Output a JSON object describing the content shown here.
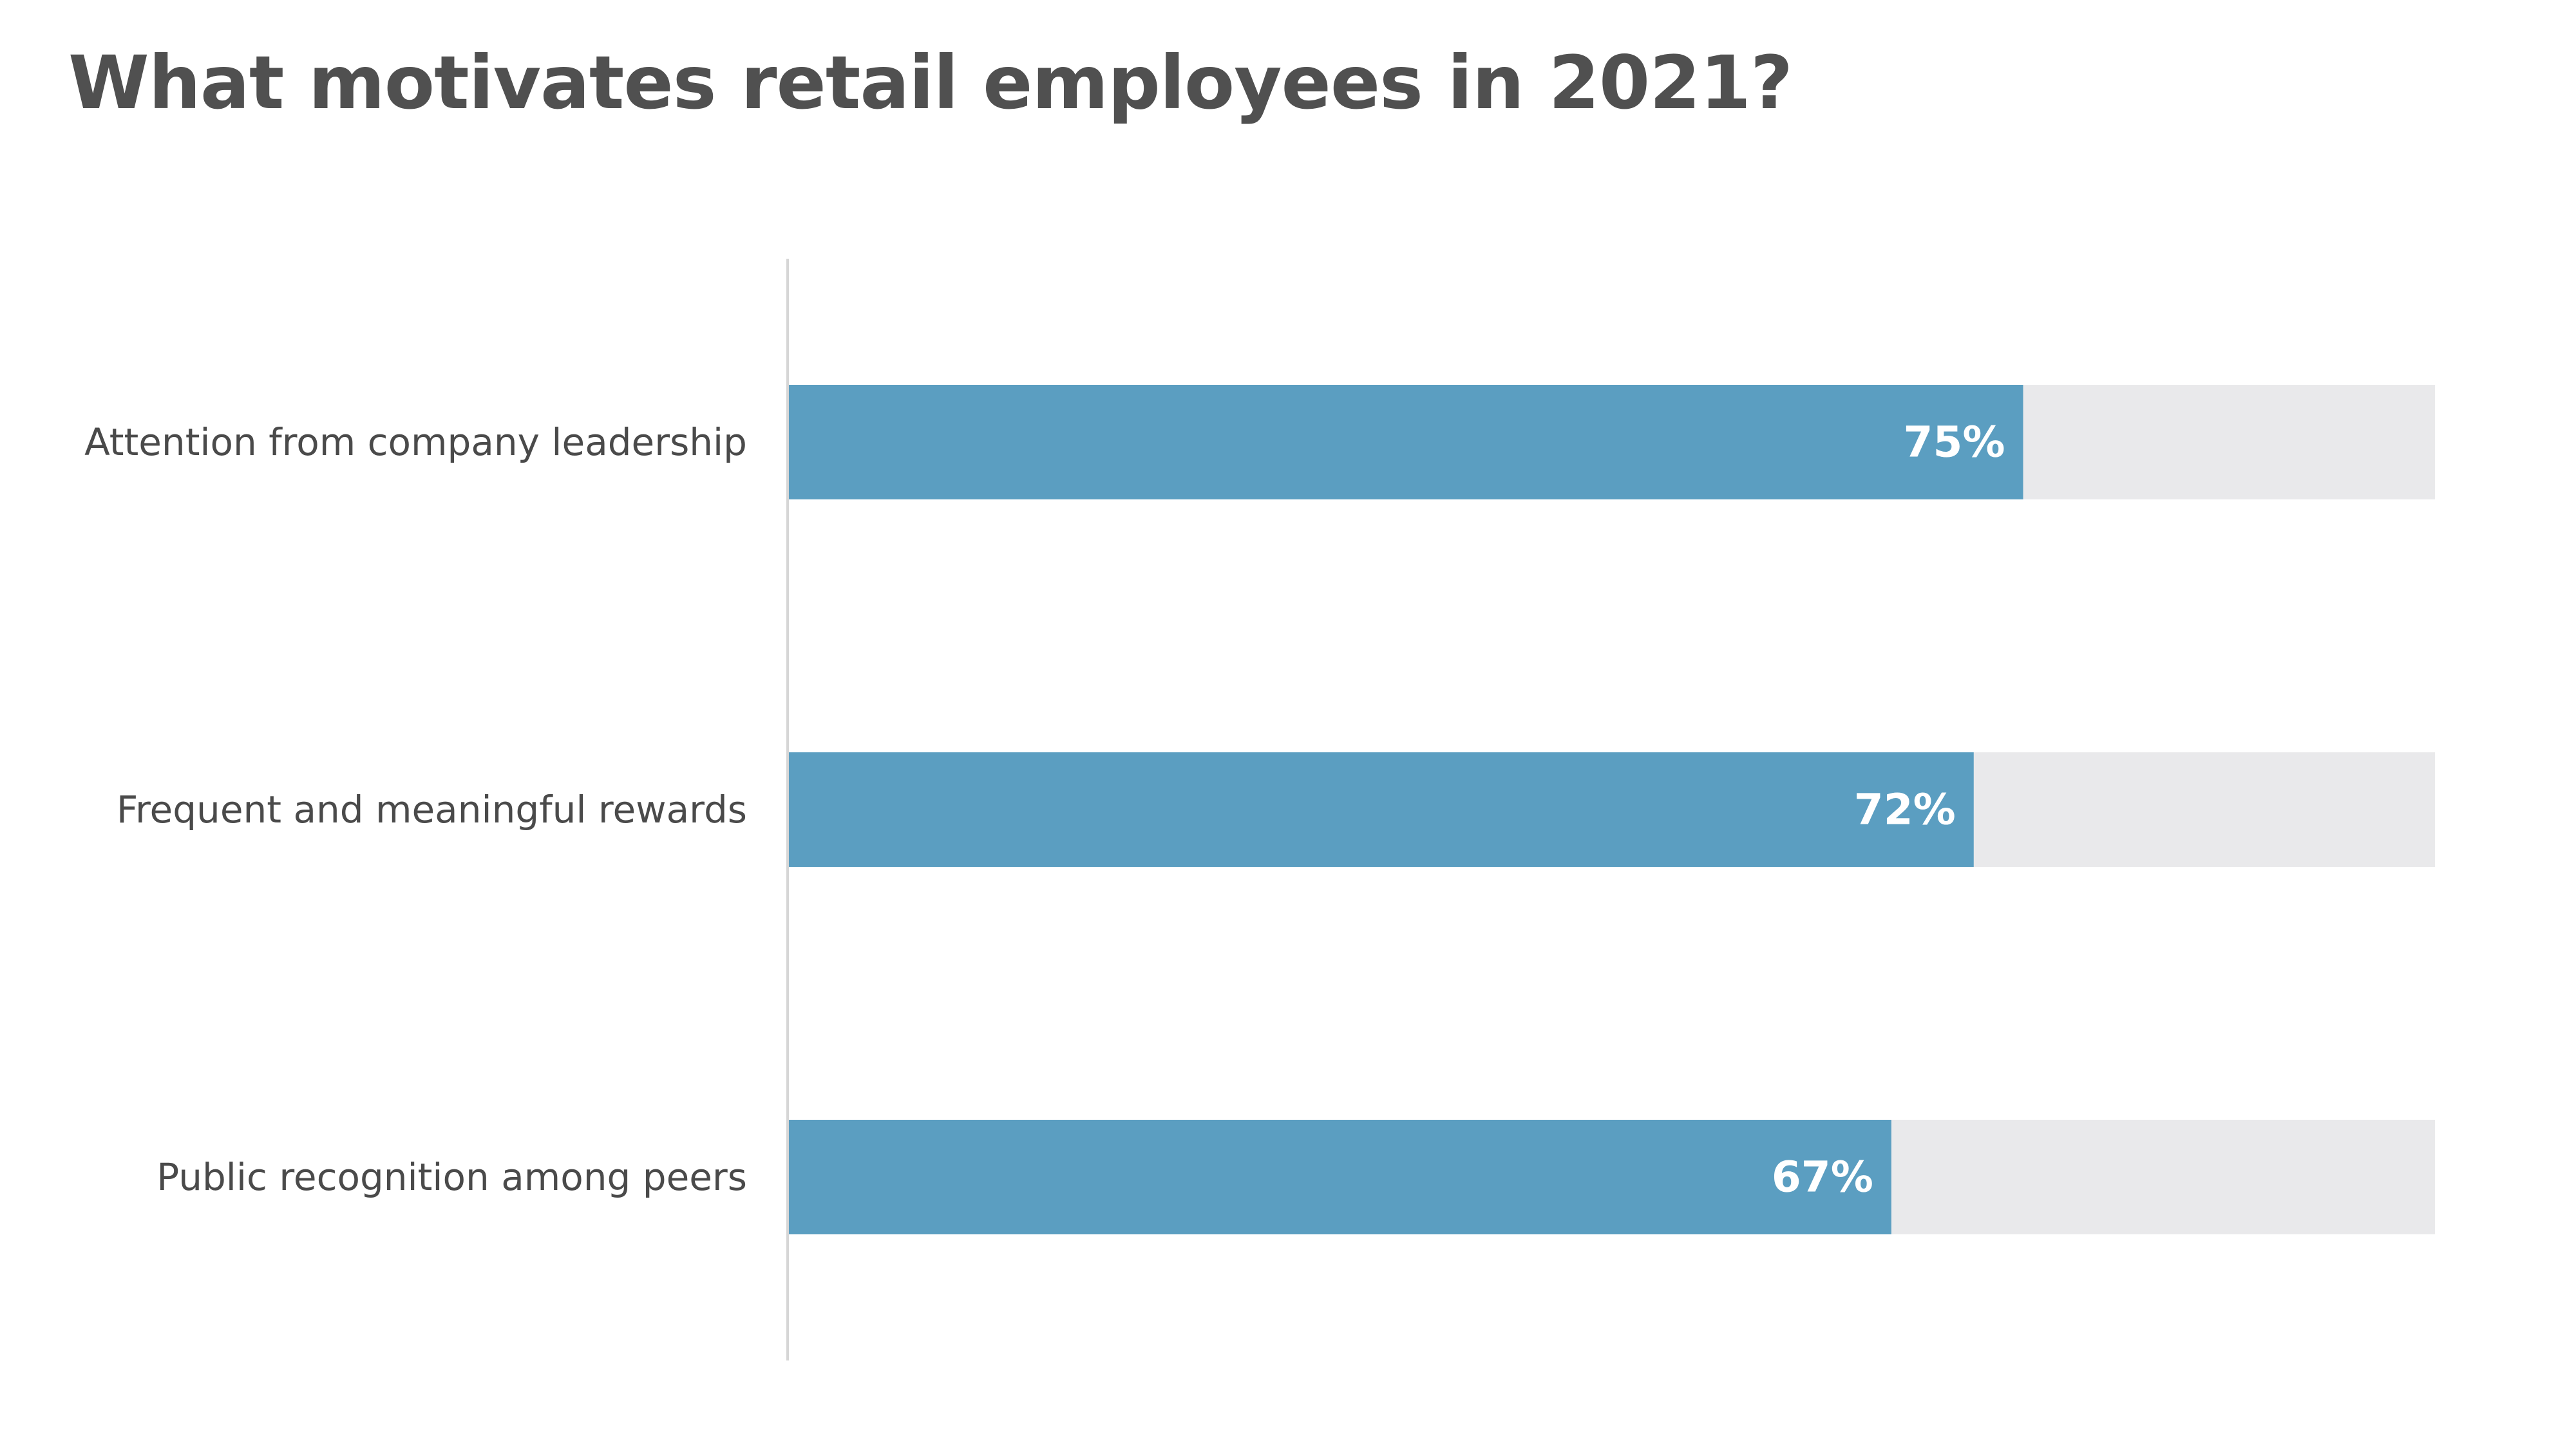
{
  "chart_data": {
    "type": "bar",
    "orientation": "horizontal",
    "title": "What motivates retail employees in 2021?",
    "categories": [
      "Attention from company leadership",
      "Frequent and meaningful rewards",
      "Public recognition among peers"
    ],
    "values": [
      75,
      72,
      67
    ],
    "value_labels": [
      "75%",
      "72%",
      "67%"
    ],
    "xlim": [
      0,
      100
    ],
    "grid": false,
    "legend": "none",
    "colors": {
      "bar": "#5b9ec1",
      "track": "#e9e9eb",
      "axis": "#d6d6d6",
      "title": "#505050",
      "label": "#4a4a4a",
      "value_text": "#ffffff"
    }
  }
}
